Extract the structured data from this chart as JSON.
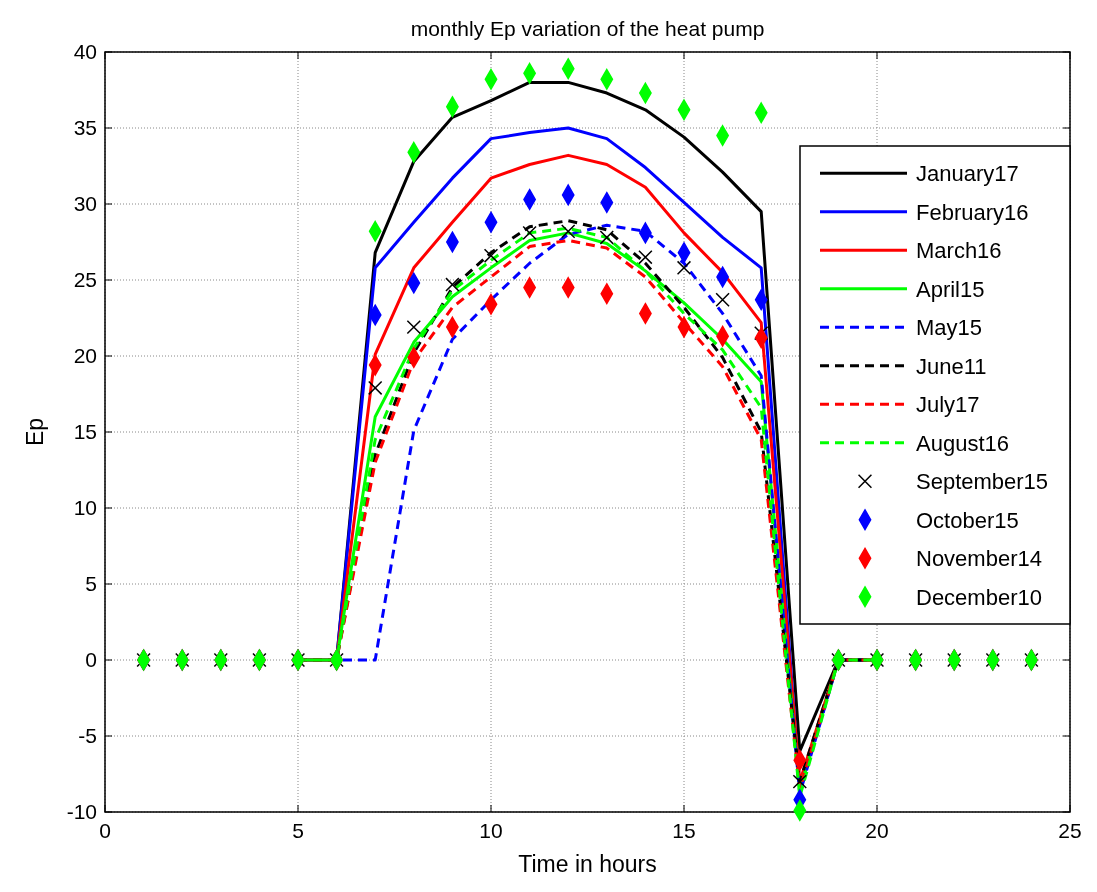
{
  "chart_data": {
    "type": "line",
    "title": "monthly Ep variation of the heat pump",
    "xlabel": "Time in hours",
    "ylabel": "Ep",
    "x": [
      1,
      2,
      3,
      4,
      5,
      6,
      7,
      8,
      9,
      10,
      11,
      12,
      13,
      14,
      15,
      16,
      17,
      18,
      19,
      20,
      21,
      22,
      23,
      24
    ],
    "xlim": [
      0,
      25
    ],
    "xticks": [
      0,
      5,
      10,
      15,
      20,
      25
    ],
    "ylim": [
      -10,
      40
    ],
    "yticks": [
      -10,
      -5,
      0,
      5,
      10,
      15,
      20,
      25,
      30,
      35,
      40
    ],
    "grid": true,
    "legend": "right",
    "series": [
      {
        "name": "January17",
        "color": "#000000",
        "line_style": "solid",
        "values": [
          null,
          null,
          null,
          null,
          0,
          0,
          26.8,
          32.8,
          35.7,
          36.8,
          38.0,
          38.0,
          37.3,
          36.2,
          34.4,
          32.1,
          29.5,
          -6,
          0,
          0,
          null,
          null,
          null,
          null
        ]
      },
      {
        "name": "February16",
        "color": "#0000ff",
        "line_style": "solid",
        "values": [
          null,
          null,
          null,
          null,
          0,
          0,
          25.8,
          28.8,
          31.7,
          34.3,
          34.7,
          35.0,
          34.3,
          32.4,
          30.1,
          27.8,
          25.8,
          -8.5,
          0,
          0,
          null,
          null,
          null,
          null
        ]
      },
      {
        "name": "March16",
        "color": "#ff0000",
        "line_style": "solid",
        "values": [
          null,
          null,
          null,
          null,
          0,
          0,
          20.1,
          25.8,
          28.8,
          31.7,
          32.6,
          33.2,
          32.6,
          31.1,
          28.1,
          25.5,
          22.2,
          -8,
          0,
          0,
          null,
          null,
          null,
          null
        ]
      },
      {
        "name": "April15",
        "color": "#00ff00",
        "line_style": "solid",
        "values": [
          null,
          null,
          null,
          null,
          0,
          0,
          16.0,
          20.9,
          23.9,
          25.8,
          27.6,
          28.1,
          27.4,
          25.6,
          23.5,
          21.1,
          18.3,
          -8.5,
          0,
          0,
          null,
          null,
          null,
          null
        ]
      },
      {
        "name": "May15",
        "color": "#0000ff",
        "line_style": "dashed",
        "values": [
          null,
          null,
          null,
          null,
          0,
          0,
          0,
          15.1,
          21.1,
          23.7,
          26.1,
          28.0,
          28.6,
          28.2,
          26.1,
          22.8,
          18.7,
          -8.8,
          0,
          0,
          null,
          null,
          null,
          null
        ]
      },
      {
        "name": "June11",
        "color": "#000000",
        "line_style": "dashed",
        "values": [
          null,
          null,
          null,
          null,
          0,
          0,
          13.5,
          20.2,
          24.5,
          26.8,
          28.5,
          28.9,
          28.3,
          26.1,
          23.2,
          19.9,
          15,
          -8,
          0,
          0,
          null,
          null,
          null,
          null
        ]
      },
      {
        "name": "July17",
        "color": "#ff0000",
        "line_style": "dashed",
        "values": [
          null,
          null,
          null,
          null,
          0,
          0,
          13,
          19.7,
          23.2,
          25.2,
          27.2,
          27.6,
          27.1,
          25.2,
          22.2,
          19.3,
          14.5,
          -8.5,
          0,
          0,
          null,
          null,
          null,
          null
        ]
      },
      {
        "name": "August16",
        "color": "#00ff00",
        "line_style": "dashed",
        "values": [
          null,
          null,
          null,
          null,
          0,
          0,
          14.5,
          20.5,
          24.3,
          26.3,
          28.1,
          28.4,
          27.8,
          25.6,
          22.8,
          20.4,
          16.6,
          -9,
          0,
          0,
          null,
          null,
          null,
          null
        ]
      },
      {
        "name": "September15",
        "type": "scatter",
        "marker": "cross",
        "color": "#000000",
        "values": [
          0,
          0,
          0,
          0,
          0,
          0,
          17.9,
          21.9,
          24.7,
          26.6,
          28.1,
          28.2,
          27.8,
          26.5,
          25.8,
          23.7,
          21.5,
          -8,
          0,
          0,
          0,
          0,
          0,
          0
        ]
      },
      {
        "name": "October15",
        "type": "scatter",
        "marker": "diamond",
        "color": "#0000ff",
        "values": [
          0,
          0,
          0,
          0,
          0,
          0,
          22.7,
          24.8,
          27.5,
          28.8,
          30.3,
          30.6,
          30.1,
          28.1,
          26.8,
          25.2,
          23.7,
          -9.2,
          0,
          0,
          0,
          0,
          0,
          0
        ]
      },
      {
        "name": "November14",
        "type": "scatter",
        "marker": "diamond",
        "color": "#ff0000",
        "values": [
          0,
          0,
          0,
          0,
          0,
          0,
          19.4,
          19.9,
          21.9,
          23.4,
          24.5,
          24.5,
          24.1,
          22.8,
          21.9,
          21.3,
          21.2,
          -6.6,
          0,
          0,
          0,
          0,
          0,
          0
        ]
      },
      {
        "name": "December10",
        "type": "scatter",
        "marker": "diamond",
        "color": "#00ff00",
        "values": [
          0,
          0,
          0,
          0,
          0,
          0,
          28.2,
          33.4,
          36.4,
          38.2,
          38.6,
          38.9,
          38.2,
          37.3,
          36.2,
          34.5,
          36.0,
          -9.9,
          0,
          0,
          0,
          0,
          0,
          0
        ]
      }
    ]
  }
}
